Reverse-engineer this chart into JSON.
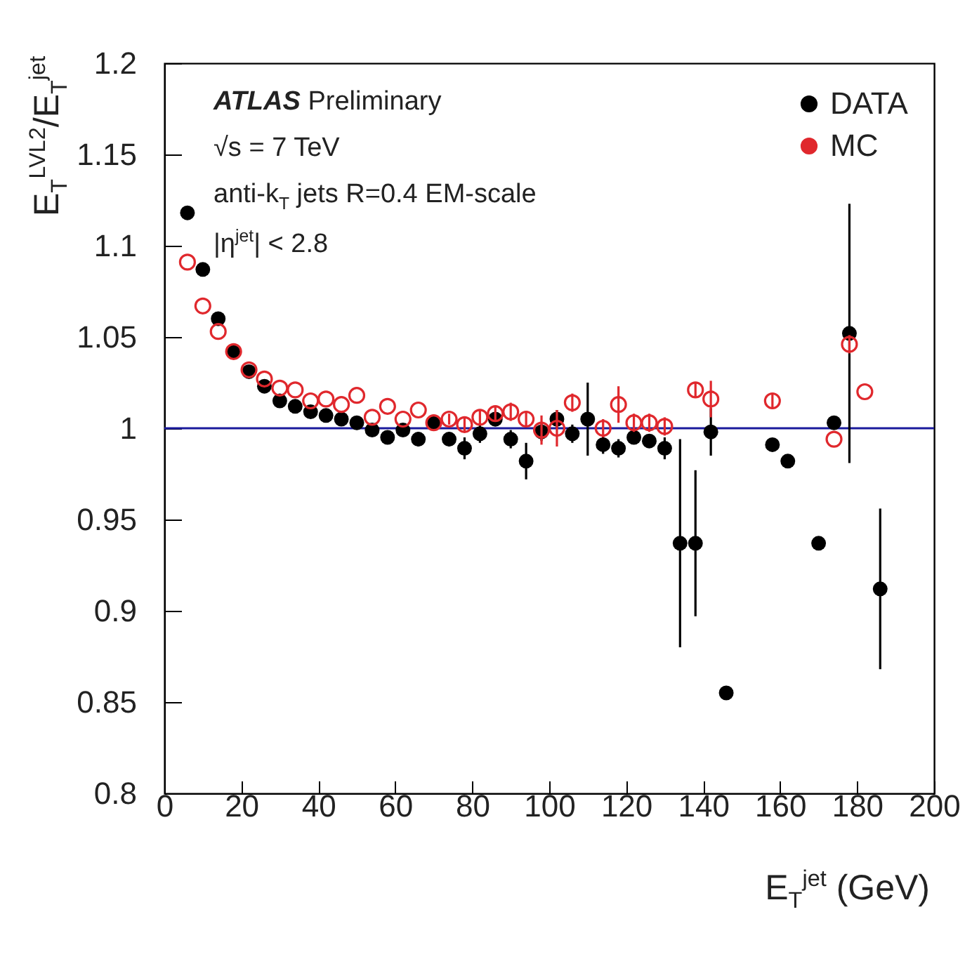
{
  "chart_data": {
    "type": "scatter",
    "xlabel": "E$_{T}$$^{jet}$ (GeV)",
    "ylabel": "E$_{T}$$^{LVL2}$/E$_{T}$$^{jet}$",
    "annotations": [
      "ATLAS Preliminary",
      "√s = 7 TeV",
      "anti-k$_{T}$ jets R=0.4 EM-scale",
      "|η$^{jet}$| < 2.8"
    ],
    "xlim": [
      0,
      200
    ],
    "xticks": [
      0,
      20,
      40,
      60,
      80,
      100,
      120,
      140,
      160,
      180,
      200
    ],
    "ylim": [
      0.8,
      1.2
    ],
    "yticks": [
      0.8,
      0.85,
      0.9,
      0.95,
      1,
      1.05,
      1.1,
      1.15,
      1.2
    ],
    "grid": false,
    "legend": "top right",
    "marker": "circle",
    "ref_lines": [
      {
        "axis": "y",
        "value": 1,
        "color": "#1a1a9c"
      }
    ],
    "series": [
      {
        "name": "DATA",
        "color": "#000000",
        "x": [
          6,
          10,
          14,
          18,
          22,
          26,
          30,
          34,
          38,
          42,
          46,
          50,
          54,
          58,
          62,
          66,
          70,
          74,
          78,
          82,
          86,
          90,
          94,
          98,
          102,
          106,
          110,
          114,
          118,
          122,
          126,
          130,
          134,
          138,
          142,
          146,
          158,
          162,
          170,
          174,
          178,
          186
        ],
        "values": [
          1.118,
          1.087,
          1.06,
          1.042,
          1.031,
          1.023,
          1.015,
          1.012,
          1.009,
          1.007,
          1.005,
          1.003,
          0.999,
          0.995,
          0.999,
          0.994,
          1.003,
          0.994,
          0.989,
          0.997,
          1.005,
          0.994,
          0.982,
          0.998,
          1.005,
          0.997,
          1.005,
          0.991,
          0.989,
          0.995,
          0.993,
          0.989,
          0.937,
          0.937,
          0.998,
          0.855,
          0.991,
          0.982,
          0.937,
          1.003,
          1.052,
          0.912
        ],
        "errors": [
          0.002,
          0.002,
          0.002,
          0.002,
          0.002,
          0.002,
          0.002,
          0.002,
          0.002,
          0.002,
          0.002,
          0.003,
          0.003,
          0.003,
          0.003,
          0.004,
          0.004,
          0.004,
          0.006,
          0.005,
          0.004,
          0.005,
          0.01,
          0.005,
          0.005,
          0.005,
          0.02,
          0.005,
          0.005,
          0.003,
          0.003,
          0.006,
          0.057,
          0.04,
          0.013,
          null,
          0.003,
          null,
          null,
          0.003,
          0.071,
          0.044
        ]
      },
      {
        "name": "MC",
        "color": "#e0282d",
        "x": [
          6,
          10,
          14,
          18,
          22,
          26,
          30,
          34,
          38,
          42,
          46,
          50,
          54,
          58,
          62,
          66,
          70,
          74,
          78,
          82,
          86,
          90,
          94,
          98,
          102,
          106,
          114,
          118,
          122,
          126,
          130,
          138,
          142,
          158,
          174,
          178,
          182
        ],
        "values": [
          1.091,
          1.067,
          1.053,
          1.042,
          1.032,
          1.027,
          1.022,
          1.021,
          1.015,
          1.016,
          1.013,
          1.018,
          1.006,
          1.012,
          1.005,
          1.01,
          1.003,
          1.005,
          1.002,
          1.006,
          1.008,
          1.009,
          1.005,
          0.999,
          1.0,
          1.014,
          1.0,
          1.013,
          1.003,
          1.003,
          1.001,
          1.021,
          1.016,
          1.015,
          0.994,
          1.046,
          1.02
        ],
        "errors": [
          null,
          null,
          null,
          null,
          null,
          null,
          null,
          null,
          null,
          null,
          null,
          null,
          null,
          null,
          null,
          null,
          null,
          0.003,
          0.004,
          0.004,
          0.004,
          0.005,
          0.004,
          0.008,
          0.01,
          0.005,
          0.005,
          0.01,
          0.005,
          0.005,
          0.005,
          0.004,
          0.01,
          0.004,
          null,
          0.005,
          null
        ]
      }
    ]
  }
}
